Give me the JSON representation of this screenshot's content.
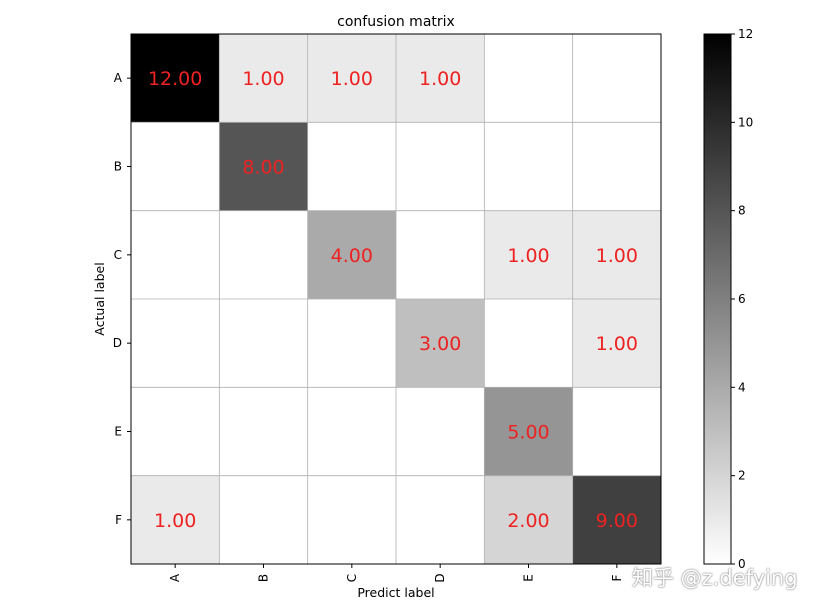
{
  "chart_data": {
    "type": "heatmap",
    "title": "confusion matrix",
    "xlabel": "Predict label",
    "ylabel": "Actual label",
    "x_categories": [
      "A",
      "B",
      "C",
      "D",
      "E",
      "F"
    ],
    "y_categories": [
      "A",
      "B",
      "C",
      "D",
      "E",
      "F"
    ],
    "values": [
      [
        12,
        1,
        1,
        1,
        0,
        0
      ],
      [
        0,
        8,
        0,
        0,
        0,
        0
      ],
      [
        0,
        0,
        4,
        0,
        1,
        1
      ],
      [
        0,
        0,
        0,
        3,
        0,
        1
      ],
      [
        0,
        0,
        0,
        0,
        5,
        0
      ],
      [
        1,
        0,
        0,
        0,
        2,
        9
      ]
    ],
    "cell_labels": [
      [
        "12.00",
        "1.00",
        "1.00",
        "1.00",
        "",
        ""
      ],
      [
        "",
        "8.00",
        "",
        "",
        "",
        ""
      ],
      [
        "",
        "",
        "4.00",
        "",
        "1.00",
        "1.00"
      ],
      [
        "",
        "",
        "",
        "3.00",
        "",
        "1.00"
      ],
      [
        "",
        "",
        "",
        "",
        "5.00",
        ""
      ],
      [
        "1.00",
        "",
        "",
        "",
        "2.00",
        "9.00"
      ]
    ],
    "colormap": "gray_r",
    "vmin": 0,
    "vmax": 12,
    "label_color": "#ee2222",
    "colorbar_ticks": [
      0,
      2,
      4,
      6,
      8,
      10,
      12
    ],
    "grid": true
  },
  "watermark": "知乎 @z.defying"
}
